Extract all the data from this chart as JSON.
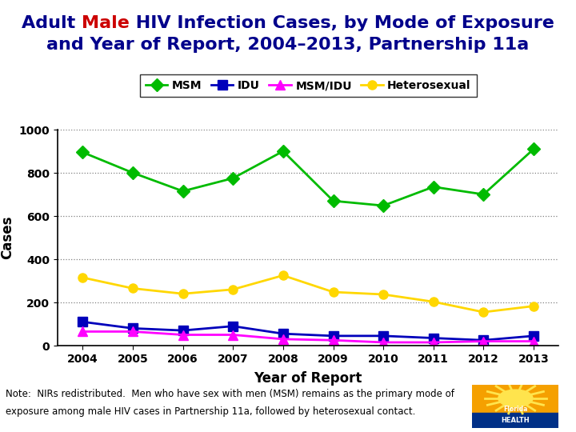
{
  "title_line1_pre": "Adult ",
  "title_line1_colored": "Male",
  "title_line1_post": " HIV Infection Cases, by Mode of Exposure",
  "title_line2": "and Year of Report, 2004–2013, Partnership 11a",
  "title_color_normal": "#00008B",
  "title_color_male": "#CC0000",
  "years": [
    2004,
    2005,
    2006,
    2007,
    2008,
    2009,
    2010,
    2011,
    2012,
    2013
  ],
  "MSM": [
    895,
    800,
    715,
    775,
    900,
    670,
    648,
    735,
    700,
    910
  ],
  "IDU": [
    110,
    80,
    70,
    90,
    55,
    45,
    45,
    35,
    25,
    45
  ],
  "MSM_IDU": [
    65,
    65,
    50,
    50,
    30,
    25,
    15,
    15,
    20,
    20
  ],
  "Heterosexual": [
    315,
    265,
    240,
    260,
    325,
    248,
    237,
    203,
    155,
    183
  ],
  "MSM_color": "#00BB00",
  "IDU_color": "#0000BB",
  "MSM_IDU_color": "#FF00FF",
  "Heterosexual_color": "#FFD700",
  "xlabel": "Year of Report",
  "ylabel": "Cases",
  "ylim": [
    0,
    1000
  ],
  "yticks": [
    0,
    200,
    400,
    600,
    800,
    1000
  ],
  "legend_labels": [
    "MSM",
    "IDU",
    "MSM/IDU",
    "Heterosexual"
  ],
  "note_line1": "Note:  NIRs redistributed.  Men who have sex with men (MSM) remains as the primary mode of",
  "note_line2": "exposure among male HIV cases in Partnership 11a, followed by heterosexual contact.",
  "background_color": "#FFFFFF",
  "title_fontsize": 16,
  "axis_label_fontsize": 12,
  "tick_fontsize": 10,
  "legend_fontsize": 10,
  "note_fontsize": 8.5
}
